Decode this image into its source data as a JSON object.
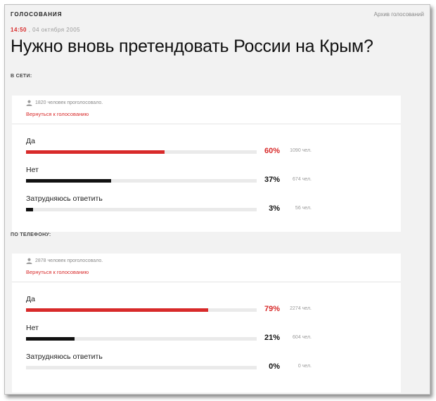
{
  "header": {
    "section_label": "ГОЛОСОВАНИЯ",
    "archive_link": "Архив голосований"
  },
  "meta": {
    "time": "14:50",
    "date": ", 04 октября 2005"
  },
  "question": "Нужно вновь претендовать России на Крым?",
  "polls": [
    {
      "label": "В СЕТИ:",
      "voters_text": "1820 человек проголосовало.",
      "back_link": "Вернуться к голосованию",
      "options": [
        {
          "label": "Да",
          "percent_text": "60%",
          "count_text": "1090 чел.",
          "fraction": 0.6,
          "color": "#d82a2a"
        },
        {
          "label": "Нет",
          "percent_text": "37%",
          "count_text": "674 чел.",
          "fraction": 0.37,
          "color": "#111111"
        },
        {
          "label": "Затрудняюсь ответить",
          "percent_text": "3%",
          "count_text": "56 чел.",
          "fraction": 0.03,
          "color": "#111111"
        }
      ]
    },
    {
      "label": "ПО ТЕЛЕФОНУ:",
      "voters_text": "2878 человек проголосовало.",
      "back_link": "Вернуться к голосованию",
      "options": [
        {
          "label": "Да",
          "percent_text": "79%",
          "count_text": "2274 чел.",
          "fraction": 0.79,
          "color": "#d82a2a"
        },
        {
          "label": "Нет",
          "percent_text": "21%",
          "count_text": "604 чел.",
          "fraction": 0.21,
          "color": "#111111"
        },
        {
          "label": "Затрудняюсь ответить",
          "percent_text": "0%",
          "count_text": "0 чел.",
          "fraction": 0.0,
          "color": "#111111"
        }
      ]
    }
  ],
  "icons": {
    "voters": "person-icon"
  },
  "colors": {
    "accent": "#d82a2a",
    "bar_dark": "#111111",
    "track": "#eaeaea",
    "page_bg": "#f2f2f2"
  }
}
